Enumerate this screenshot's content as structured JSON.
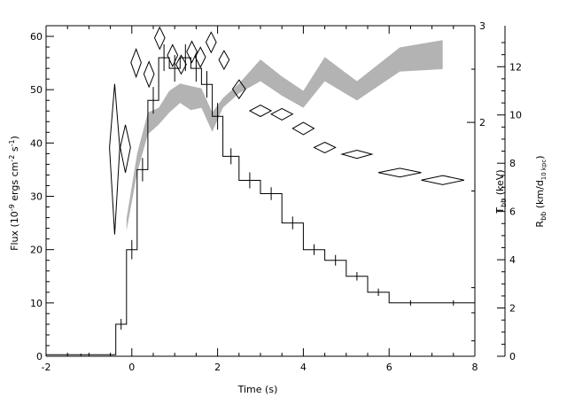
{
  "chart_data": {
    "type": "line",
    "xlabel": "Time (s)",
    "ylabel_left": {
      "pre": "Flux (10",
      "exp1": "-9",
      "mid": " ergs cm",
      "exp2": "-2",
      "mid2": " s",
      "exp3": "-1",
      "post": ")"
    },
    "ylabel_right_inner": {
      "main": "T",
      "sub": "bb",
      "post": " (keV)"
    },
    "ylabel_right_outer": {
      "main": "R",
      "sub": "bb",
      "mid": " (km/d",
      "sub2": "10 kpc",
      "post": ")"
    },
    "xlim": [
      -2,
      8
    ],
    "ylim_left": [
      0,
      62
    ],
    "ylim_temperature_log": [
      0.75,
      3
    ],
    "ylim_radius": [
      0,
      13.7
    ],
    "x_ticks": [
      "-2",
      "0",
      "2",
      "4",
      "6",
      "8"
    ],
    "y_ticks_left": [
      "0",
      "10",
      "20",
      "30",
      "40",
      "50",
      "60"
    ],
    "y_ticks_temperature": [
      "2",
      "3"
    ],
    "y_ticks_radius": [
      "0",
      "2",
      "4",
      "6",
      "8",
      "10",
      "12"
    ],
    "flux_histogram": {
      "edges": [
        -2.0,
        -0.375,
        -0.125,
        0.125,
        0.375,
        0.625,
        0.875,
        1.125,
        1.375,
        1.625,
        1.875,
        2.125,
        2.5,
        3.0,
        3.5,
        4.0,
        4.5,
        5.0,
        5.5,
        6.0,
        7.0,
        8.0
      ],
      "values": [
        0.3,
        6.0,
        20.0,
        35.0,
        48.0,
        56.0,
        54.0,
        56.0,
        54.0,
        51.0,
        45.0,
        37.5,
        33.0,
        30.5,
        25.0,
        20.0,
        18.0,
        15.0,
        12.0,
        10.0,
        10.0
      ],
      "errors": [
        0.2,
        1.0,
        1.8,
        2.2,
        2.5,
        2.5,
        2.5,
        2.5,
        2.5,
        2.5,
        2.5,
        1.5,
        1.5,
        1.2,
        1.2,
        1.0,
        1.0,
        0.8,
        0.7,
        0.5,
        0.5
      ]
    },
    "temperature_kev": {
      "x": [
        -0.4,
        -0.15,
        0.1,
        0.4,
        0.65,
        0.95,
        1.15,
        1.4,
        1.6,
        1.85,
        2.15,
        2.5,
        3.0,
        3.5,
        4.0,
        4.5,
        5.25,
        6.25,
        7.25
      ],
      "y": [
        1.8,
        1.8,
        2.57,
        2.45,
        2.85,
        2.65,
        2.55,
        2.69,
        2.63,
        2.8,
        2.6,
        2.3,
        2.1,
        2.07,
        1.95,
        1.8,
        1.75,
        1.62,
        1.57
      ],
      "dx": [
        0.12,
        0.12,
        0.12,
        0.12,
        0.12,
        0.12,
        0.12,
        0.12,
        0.12,
        0.12,
        0.12,
        0.15,
        0.25,
        0.25,
        0.25,
        0.25,
        0.35,
        0.5,
        0.5
      ],
      "dy": [
        0.55,
        0.18,
        0.15,
        0.13,
        0.13,
        0.12,
        0.1,
        0.12,
        0.11,
        0.12,
        0.1,
        0.09,
        0.05,
        0.05,
        0.05,
        0.04,
        0.03,
        0.03,
        0.03
      ]
    },
    "radius_band": {
      "x": [
        -0.125,
        0.125,
        0.375,
        0.625,
        0.875,
        1.125,
        1.375,
        1.625,
        1.875,
        2.125,
        2.5,
        3.0,
        3.5,
        4.0,
        4.5,
        5.25,
        6.25,
        7.25
      ],
      "low": [
        5.2,
        7.6,
        9.2,
        9.6,
        10.1,
        10.5,
        10.2,
        10.3,
        9.3,
        10.3,
        10.9,
        11.4,
        10.8,
        10.3,
        11.4,
        10.6,
        11.8,
        11.9
      ],
      "high": [
        5.7,
        8.4,
        10.1,
        10.3,
        11.0,
        11.3,
        11.2,
        11.1,
        10.1,
        10.7,
        11.3,
        12.3,
        11.6,
        11.0,
        12.4,
        11.4,
        12.8,
        13.1
      ]
    },
    "colors": {
      "line": "#000000",
      "band": "#b3b3b3",
      "background": "#ffffff"
    },
    "grid": false
  }
}
